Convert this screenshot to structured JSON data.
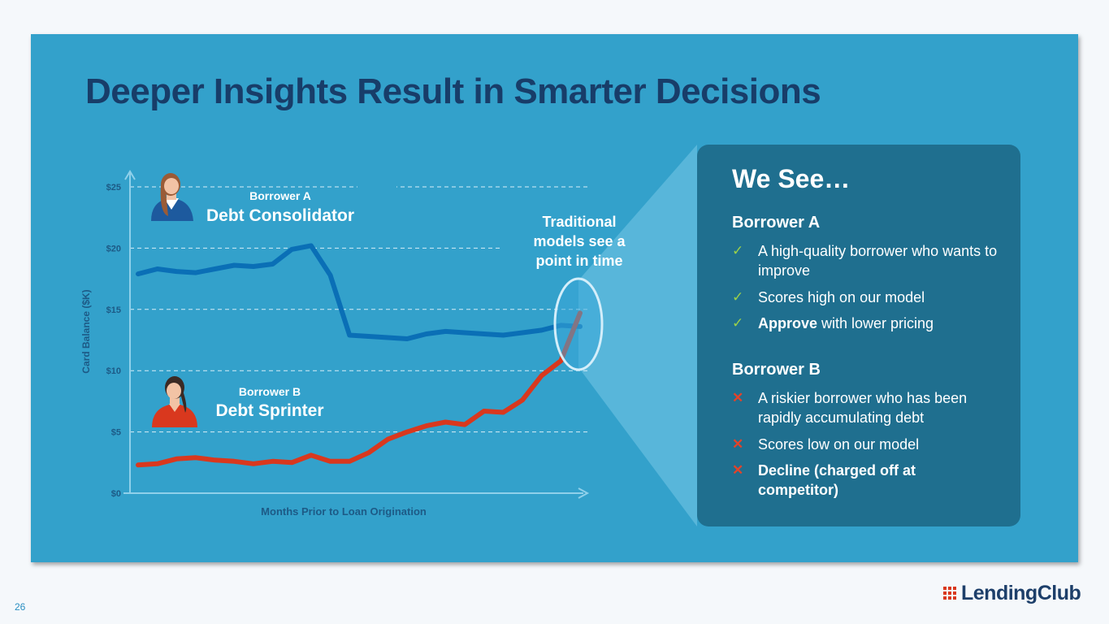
{
  "slide": {
    "title": "Deeper Insights Result in Smarter Decisions",
    "page_number": "26",
    "logo_text": "LendingClub"
  },
  "colors": {
    "background": "#33a1cb",
    "title": "#183d69",
    "borrower_a_line": "#0a6fb6",
    "borrower_b_line": "#d9381e",
    "panel": "#1f6f8f",
    "check": "#9bd04a",
    "cross": "#e2432a"
  },
  "chart_data": {
    "type": "line",
    "ylabel": "Card Balance ($K)",
    "xlabel": "Months Prior to Loan Origination",
    "ylim": [
      0,
      25
    ],
    "yticks": [
      "$0",
      "$5",
      "$10",
      "$15",
      "$20",
      "$25"
    ],
    "grid": "dashed horizontal",
    "x": [
      1,
      2,
      3,
      4,
      5,
      6,
      7,
      8,
      9,
      10,
      11,
      12,
      13,
      14,
      15,
      16,
      17,
      18,
      19,
      20,
      21,
      22,
      23,
      24
    ],
    "series": [
      {
        "name": "Borrower A",
        "label_small": "Borrower A",
        "label_large": "Debt Consolidator",
        "values": [
          17.9,
          18.3,
          18.1,
          18.0,
          18.3,
          18.6,
          18.5,
          18.7,
          19.9,
          20.2,
          17.8,
          12.9,
          12.8,
          12.7,
          12.6,
          13.0,
          13.2,
          13.1,
          13.0,
          12.9,
          13.1,
          13.3,
          13.7,
          13.6
        ]
      },
      {
        "name": "Borrower B",
        "label_small": "Borrower B",
        "label_large": "Debt Sprinter",
        "values": [
          2.3,
          2.4,
          2.8,
          2.9,
          2.7,
          2.6,
          2.4,
          2.6,
          2.5,
          3.1,
          2.6,
          2.6,
          3.3,
          4.4,
          5.0,
          5.5,
          5.8,
          5.6,
          6.7,
          6.6,
          7.6,
          9.6,
          10.8,
          14.7
        ]
      }
    ],
    "callout": "Traditional models see a point in time"
  },
  "panel": {
    "heading": "We See…",
    "borrower_a": {
      "title": "Borrower A",
      "items": [
        {
          "bold": "",
          "text": "A high-quality borrower who wants to improve"
        },
        {
          "bold": "",
          "text": "Scores high on our model"
        },
        {
          "bold": "Approve",
          "text": " with lower pricing"
        }
      ]
    },
    "borrower_b": {
      "title": "Borrower B",
      "items": [
        {
          "bold": "",
          "text": "A riskier borrower who has been rapidly accumulating debt"
        },
        {
          "bold": "",
          "text": "Scores low on our model"
        },
        {
          "bold": "Decline (charged off at competitor)",
          "text": ""
        }
      ]
    }
  }
}
